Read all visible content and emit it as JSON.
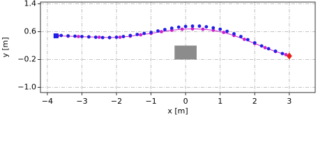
{
  "chart_data": {
    "type": "scatter",
    "x_label": "x [m]",
    "y_label": "y [m]",
    "xlim": [
      -4.2,
      3.75
    ],
    "ylim": [
      -1.15,
      1.45
    ],
    "xticks": [
      {
        "value": -4,
        "label": "−4"
      },
      {
        "value": -3,
        "label": "−3"
      },
      {
        "value": -2,
        "label": "−2"
      },
      {
        "value": -1,
        "label": "−1"
      },
      0,
      1,
      2,
      3
    ],
    "yticks": [
      1.4,
      0.6,
      {
        "value": -0.2,
        "label": "−0.2"
      },
      {
        "value": -1.0,
        "label": "−1.0"
      }
    ],
    "grid": true,
    "obstacle": {
      "x": [
        -0.32,
        0.32
      ],
      "y": [
        -0.2,
        0.2
      ],
      "color": "#8c8c8c"
    },
    "series": [
      {
        "color": "#cc22cc",
        "line": true,
        "x": [
          -3.7,
          -3.4,
          -3.1,
          -2.8,
          -2.5,
          -2.2,
          -1.9,
          -1.6,
          -1.3,
          -1.0,
          -0.7,
          -0.4,
          -0.1,
          0.2,
          0.5,
          0.8,
          1.1,
          1.4,
          1.7,
          2.0,
          2.3,
          2.6,
          2.9
        ],
        "values": [
          0.48,
          0.47,
          0.46,
          0.45,
          0.44,
          0.43,
          0.44,
          0.47,
          0.51,
          0.55,
          0.6,
          0.64,
          0.67,
          0.68,
          0.67,
          0.64,
          0.58,
          0.49,
          0.38,
          0.26,
          0.14,
          0.03,
          -0.06
        ]
      },
      {
        "color": "#1f1fe6",
        "line": false,
        "x": [
          -3.6,
          -3.4,
          -3.2,
          -3.0,
          -2.8,
          -2.6,
          -2.4,
          -2.2,
          -2.0,
          -1.8,
          -1.6,
          -1.4,
          -1.2,
          -1.0,
          -0.8,
          -0.6,
          -0.4,
          -0.2,
          0.0,
          0.2,
          0.4,
          0.6,
          0.8,
          1.0,
          1.2,
          1.4,
          1.6,
          1.8,
          2.0,
          2.2,
          2.4,
          2.6,
          2.8,
          3.0
        ],
        "values": [
          0.49,
          0.48,
          0.47,
          0.46,
          0.45,
          0.44,
          0.43,
          0.43,
          0.44,
          0.46,
          0.49,
          0.52,
          0.55,
          0.58,
          0.62,
          0.66,
          0.7,
          0.73,
          0.75,
          0.76,
          0.76,
          0.74,
          0.71,
          0.67,
          0.61,
          0.54,
          0.46,
          0.37,
          0.28,
          0.19,
          0.11,
          0.04,
          -0.03,
          -0.08
        ]
      },
      {
        "color": "#1f1fe6",
        "marker": "square",
        "x": [
          -3.75
        ],
        "values": [
          0.48
        ]
      },
      {
        "color": "#e8201a",
        "marker": "diamond",
        "x": [
          3.0
        ],
        "values": [
          -0.1
        ]
      }
    ]
  }
}
